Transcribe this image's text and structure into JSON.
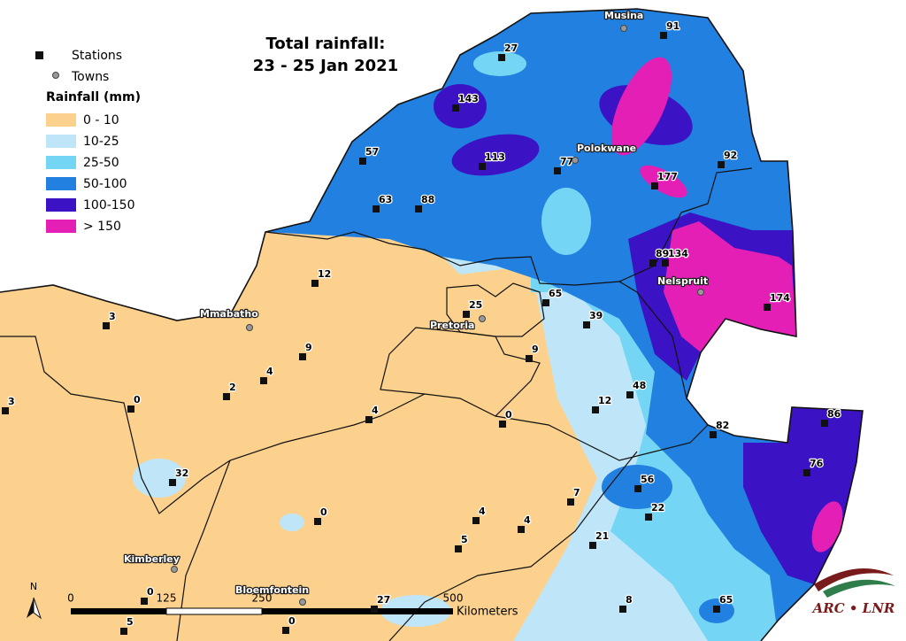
{
  "title": [
    "Total rainfall:",
    "23 - 25 Jan 2021"
  ],
  "legend": {
    "stations": "Stations",
    "towns": "Towns",
    "rainfall_title": "Rainfall (mm)",
    "classes": [
      {
        "label": "0 - 10",
        "color": "#fcd18d"
      },
      {
        "label": "10-25",
        "color": "#bfe6f8"
      },
      {
        "label": "25-50",
        "color": "#74d6f4"
      },
      {
        "label": "50-100",
        "color": "#2180e0"
      },
      {
        "label": "100-150",
        "color": "#3b12c4"
      },
      {
        "label": "> 150",
        "color": "#e41fb6"
      }
    ]
  },
  "stations": [
    91,
    27,
    143,
    57,
    113,
    77,
    92,
    177,
    63,
    88,
    89,
    134,
    12,
    174,
    65,
    25,
    39,
    3,
    9,
    9,
    4,
    2,
    48,
    12,
    0,
    3,
    4,
    0,
    82,
    86,
    76,
    32,
    56,
    7,
    22,
    0,
    4,
    4,
    5,
    21,
    65,
    8,
    0,
    27,
    0,
    5
  ],
  "towns": [
    "Musina",
    "Polokwane",
    "Nelspruit",
    "Pretoria",
    "Mmabatho",
    "Kimberley",
    "Bloemfontein"
  ],
  "scale": {
    "ticks": [
      0,
      125,
      250,
      500
    ],
    "unit": "Kilometers"
  },
  "north": "N",
  "logo": "ARC • LNR"
}
